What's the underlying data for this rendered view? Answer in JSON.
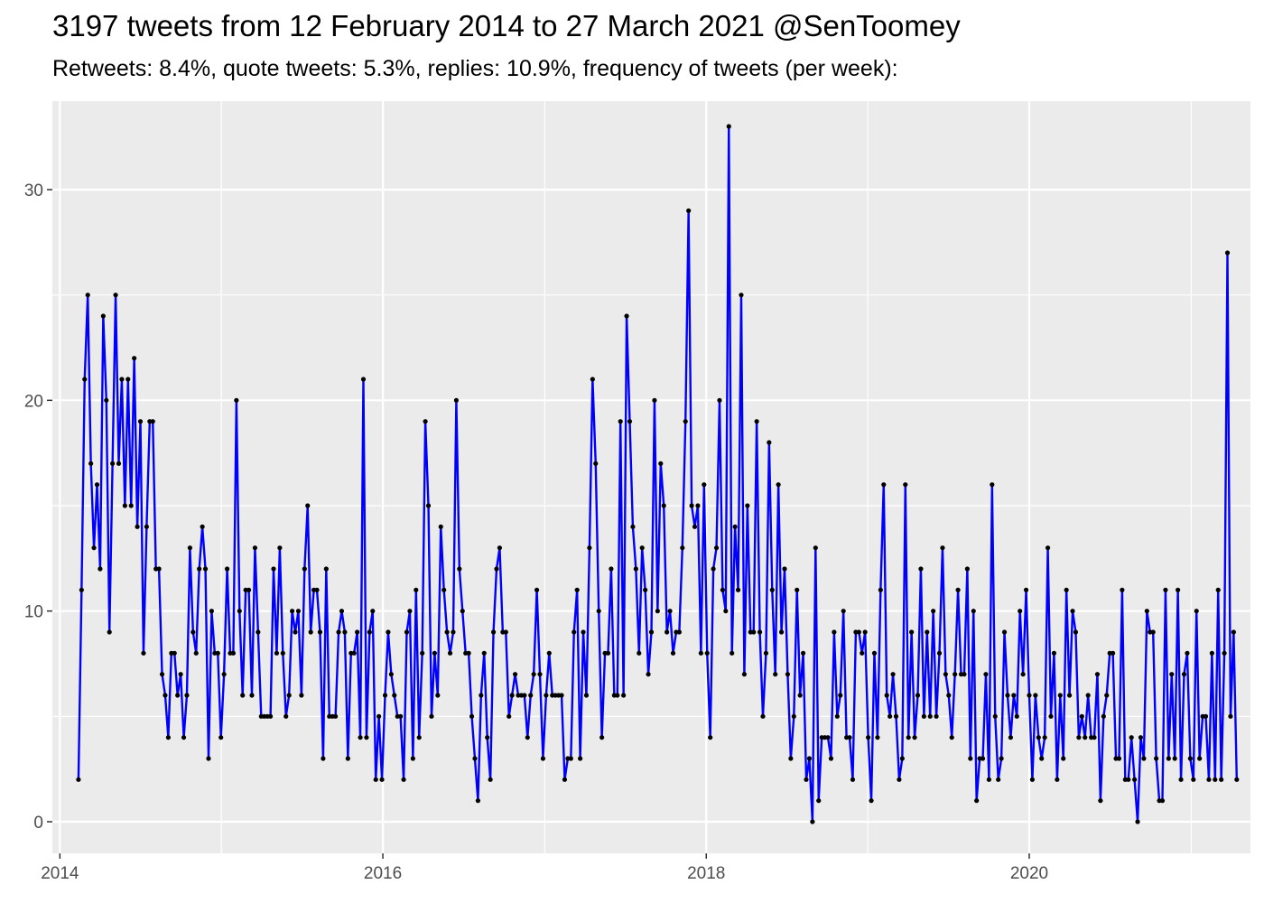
{
  "chart_data": {
    "type": "line",
    "title": "3197 tweets from 12 February 2014 to 27 March 2021 @SenToomey",
    "subtitle": "Retweets: 8.4%, quote tweets: 5.3%, replies: 10.9%, frequency of tweets (per week):",
    "xlabel": "",
    "ylabel": "",
    "x_ticks": [
      "2014",
      "2016",
      "2018",
      "2020"
    ],
    "y_ticks": [
      "0",
      "10",
      "20",
      "30"
    ],
    "xlim": [
      "2013-12-15",
      "2021-05-15"
    ],
    "ylim": [
      -1.5,
      34.2
    ],
    "grid": true,
    "x_start": "2014-02-12",
    "x_step_days": 7,
    "series": [
      {
        "name": "",
        "color": "#0000ff",
        "marker_color": "#000000",
        "values": [
          2,
          11,
          21,
          25,
          17,
          13,
          16,
          12,
          24,
          20,
          9,
          17,
          25,
          17,
          21,
          15,
          21,
          15,
          22,
          14,
          19,
          8,
          14,
          19,
          19,
          12,
          12,
          7,
          6,
          4,
          8,
          8,
          6,
          7,
          4,
          6,
          13,
          9,
          8,
          12,
          14,
          12,
          3,
          10,
          8,
          8,
          4,
          7,
          12,
          8,
          8,
          20,
          10,
          6,
          11,
          11,
          6,
          13,
          9,
          5,
          5,
          5,
          5,
          12,
          8,
          13,
          8,
          5,
          6,
          10,
          9,
          10,
          6,
          12,
          15,
          9,
          11,
          11,
          9,
          3,
          12,
          5,
          5,
          5,
          9,
          10,
          9,
          3,
          8,
          8,
          9,
          4,
          21,
          4,
          9,
          10,
          2,
          5,
          2,
          6,
          9,
          7,
          6,
          5,
          5,
          2,
          9,
          10,
          3,
          11,
          4,
          8,
          19,
          15,
          5,
          8,
          6,
          14,
          11,
          9,
          8,
          9,
          20,
          12,
          10,
          8,
          8,
          5,
          3,
          1,
          6,
          8,
          4,
          2,
          9,
          12,
          13,
          9,
          9,
          5,
          6,
          7,
          6,
          6,
          6,
          4,
          6,
          7,
          11,
          7,
          3,
          6,
          8,
          6,
          6,
          6,
          6,
          2,
          3,
          3,
          9,
          11,
          3,
          9,
          6,
          13,
          21,
          17,
          10,
          4,
          8,
          8,
          12,
          6,
          6,
          19,
          6,
          24,
          19,
          14,
          12,
          8,
          13,
          11,
          7,
          9,
          20,
          10,
          17,
          15,
          9,
          10,
          8,
          9,
          9,
          13,
          19,
          29,
          15,
          14,
          15,
          8,
          16,
          8,
          4,
          12,
          13,
          20,
          11,
          10,
          33,
          8,
          14,
          11,
          25,
          7,
          15,
          9,
          9,
          19,
          9,
          5,
          8,
          18,
          11,
          7,
          16,
          9,
          12,
          7,
          3,
          5,
          11,
          6,
          8,
          2,
          3,
          0,
          13,
          1,
          4,
          4,
          4,
          3,
          9,
          5,
          6,
          10,
          4,
          4,
          2,
          9,
          9,
          8,
          9,
          4,
          1,
          8,
          4,
          11,
          16,
          6,
          5,
          7,
          5,
          2,
          3,
          16,
          4,
          9,
          4,
          6,
          12,
          5,
          9,
          5,
          10,
          5,
          8,
          13,
          7,
          6,
          4,
          7,
          11,
          7,
          7,
          12,
          3,
          10,
          1,
          3,
          3,
          7,
          2,
          16,
          5,
          2,
          3,
          9,
          6,
          4,
          6,
          5,
          10,
          7,
          11,
          6,
          2,
          6,
          4,
          3,
          4,
          13,
          5,
          8,
          2,
          6,
          3,
          11,
          6,
          10,
          9,
          4,
          5,
          4,
          6,
          4,
          4,
          7,
          1,
          5,
          6,
          8,
          8,
          3,
          3,
          11,
          2,
          2,
          4,
          2,
          0,
          4,
          3,
          10,
          9,
          9,
          3,
          1,
          1,
          11,
          3,
          7,
          3,
          11,
          2,
          7,
          8,
          3,
          2,
          10,
          3,
          5,
          5,
          2,
          8,
          2,
          11,
          2,
          8,
          27,
          5,
          9,
          2
        ]
      }
    ]
  }
}
